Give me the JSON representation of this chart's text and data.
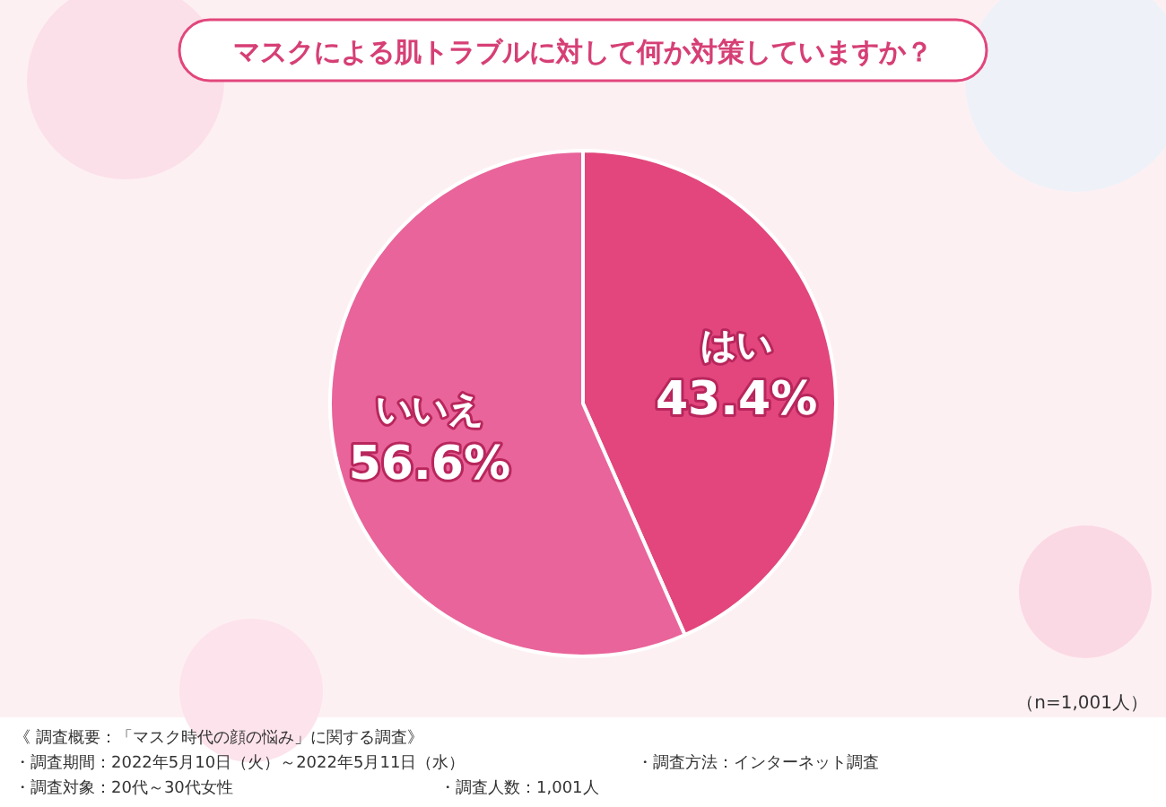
{
  "chart_data": {
    "type": "pie",
    "title": "マスクによる肌トラブルに対して何か対策していますか？",
    "categories": [
      "はい",
      "いいえ"
    ],
    "values": [
      43.4,
      56.6
    ],
    "colors": [
      "#e2467c",
      "#e9649a"
    ],
    "value_labels": [
      "43.4%",
      "56.6%"
    ],
    "annotations": [
      "（n=1,001人）",
      "《 調査概要：「マスク時代の顔の悩み」に関する調査》",
      "・調査期間：2022年5月10日（火）～2022年5月11日（水）",
      "・調査対象：20代～30代女性",
      "・調査人数：1,001人",
      "・調査方法：インターネット調査"
    ]
  }
}
